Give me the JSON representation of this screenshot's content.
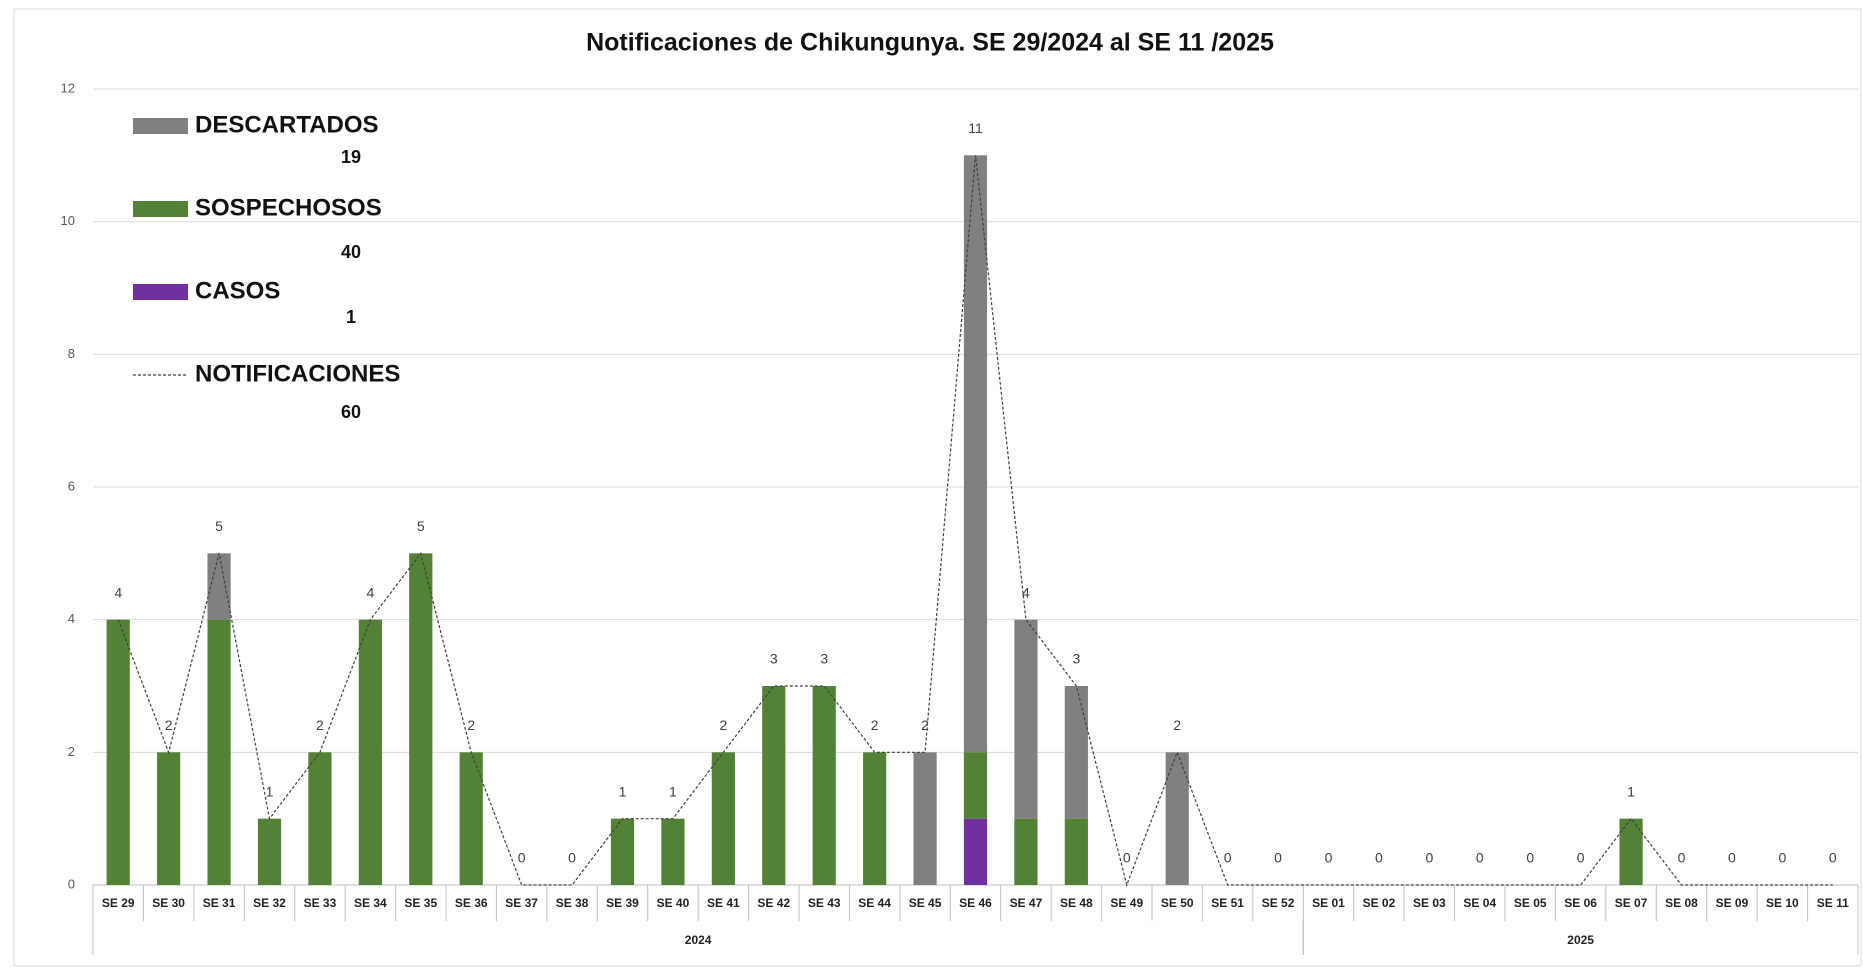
{
  "chart_data": {
    "type": "bar",
    "stacked": true,
    "title": "Notificaciones de Chikungunya. SE 29/2024 al SE 11 /2025",
    "categories": [
      "SE 29",
      "SE 30",
      "SE 31",
      "SE 32",
      "SE 33",
      "SE 34",
      "SE 35",
      "SE 36",
      "SE 37",
      "SE 38",
      "SE 39",
      "SE 40",
      "SE 41",
      "SE 42",
      "SE 43",
      "SE 44",
      "SE 45",
      "SE 46",
      "SE 47",
      "SE 48",
      "SE 49",
      "SE 50",
      "SE 51",
      "SE 52",
      "SE 01",
      "SE 02",
      "SE 03",
      "SE 04",
      "SE 05",
      "SE 06",
      "SE 07",
      "SE 08",
      "SE 09",
      "SE 10",
      "SE 11"
    ],
    "groups": [
      {
        "label": "2024",
        "span": 24
      },
      {
        "label": "2025",
        "span": 11
      }
    ],
    "series": [
      {
        "name": "DESCARTADOS",
        "color": "#808080",
        "total": 19,
        "values": [
          0,
          0,
          1,
          0,
          0,
          0,
          0,
          0,
          0,
          0,
          0,
          0,
          0,
          0,
          0,
          0,
          2,
          9,
          3,
          2,
          0,
          2,
          0,
          0,
          0,
          0,
          0,
          0,
          0,
          0,
          0,
          0,
          0,
          0,
          0
        ]
      },
      {
        "name": "SOSPECHOSOS",
        "color": "#538135",
        "total": 40,
        "values": [
          4,
          2,
          4,
          1,
          2,
          4,
          5,
          2,
          0,
          0,
          1,
          1,
          2,
          3,
          3,
          2,
          0,
          1,
          1,
          1,
          0,
          0,
          0,
          0,
          0,
          0,
          0,
          0,
          0,
          0,
          1,
          0,
          0,
          0,
          0
        ]
      },
      {
        "name": "CASOS",
        "color": "#7030a0",
        "total": 1,
        "values": [
          0,
          0,
          0,
          0,
          0,
          0,
          0,
          0,
          0,
          0,
          0,
          0,
          0,
          0,
          0,
          0,
          0,
          1,
          0,
          0,
          0,
          0,
          0,
          0,
          0,
          0,
          0,
          0,
          0,
          0,
          0,
          0,
          0,
          0,
          0
        ]
      },
      {
        "name": "NOTIFICACIONES",
        "type": "line",
        "color": "#404040",
        "dashed": true,
        "total": 60,
        "data_labels": true,
        "values": [
          4,
          2,
          5,
          1,
          2,
          4,
          5,
          2,
          0,
          0,
          1,
          1,
          2,
          3,
          3,
          2,
          2,
          11,
          4,
          3,
          0,
          2,
          0,
          0,
          0,
          0,
          0,
          0,
          0,
          0,
          1,
          0,
          0,
          0,
          0
        ]
      }
    ],
    "ylim": [
      0,
      12
    ],
    "yticks": [
      0,
      2,
      4,
      6,
      8,
      10,
      12
    ],
    "grid": true
  }
}
